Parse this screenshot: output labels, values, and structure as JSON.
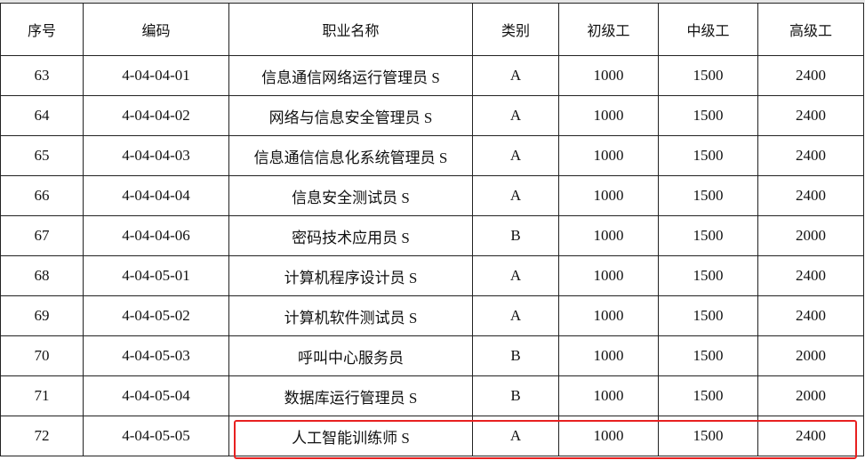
{
  "headers": [
    "序号",
    "编码",
    "职业名称",
    "类别",
    "初级工",
    "中级工",
    "高级工"
  ],
  "rows": [
    [
      "63",
      "4-04-04-01",
      "信息通信网络运行管理员 S",
      "A",
      "1000",
      "1500",
      "2400"
    ],
    [
      "64",
      "4-04-04-02",
      "网络与信息安全管理员 S",
      "A",
      "1000",
      "1500",
      "2400"
    ],
    [
      "65",
      "4-04-04-03",
      "信息通信信息化系统管理员 S",
      "A",
      "1000",
      "1500",
      "2400"
    ],
    [
      "66",
      "4-04-04-04",
      "信息安全测试员 S",
      "A",
      "1000",
      "1500",
      "2400"
    ],
    [
      "67",
      "4-04-04-06",
      "密码技术应用员 S",
      "B",
      "1000",
      "1500",
      "2000"
    ],
    [
      "68",
      "4-04-05-01",
      "计算机程序设计员 S",
      "A",
      "1000",
      "1500",
      "2400"
    ],
    [
      "69",
      "4-04-05-02",
      "计算机软件测试员 S",
      "A",
      "1000",
      "1500",
      "2400"
    ],
    [
      "70",
      "4-04-05-03",
      "呼叫中心服务员",
      "B",
      "1000",
      "1500",
      "2000"
    ],
    [
      "71",
      "4-04-05-04",
      "数据库运行管理员 S",
      "B",
      "1000",
      "1500",
      "2000"
    ],
    [
      "72",
      "4-04-05-05",
      "人工智能训练师 S",
      "A",
      "1000",
      "1500",
      "2400"
    ]
  ],
  "highlight_color": "#e82020"
}
